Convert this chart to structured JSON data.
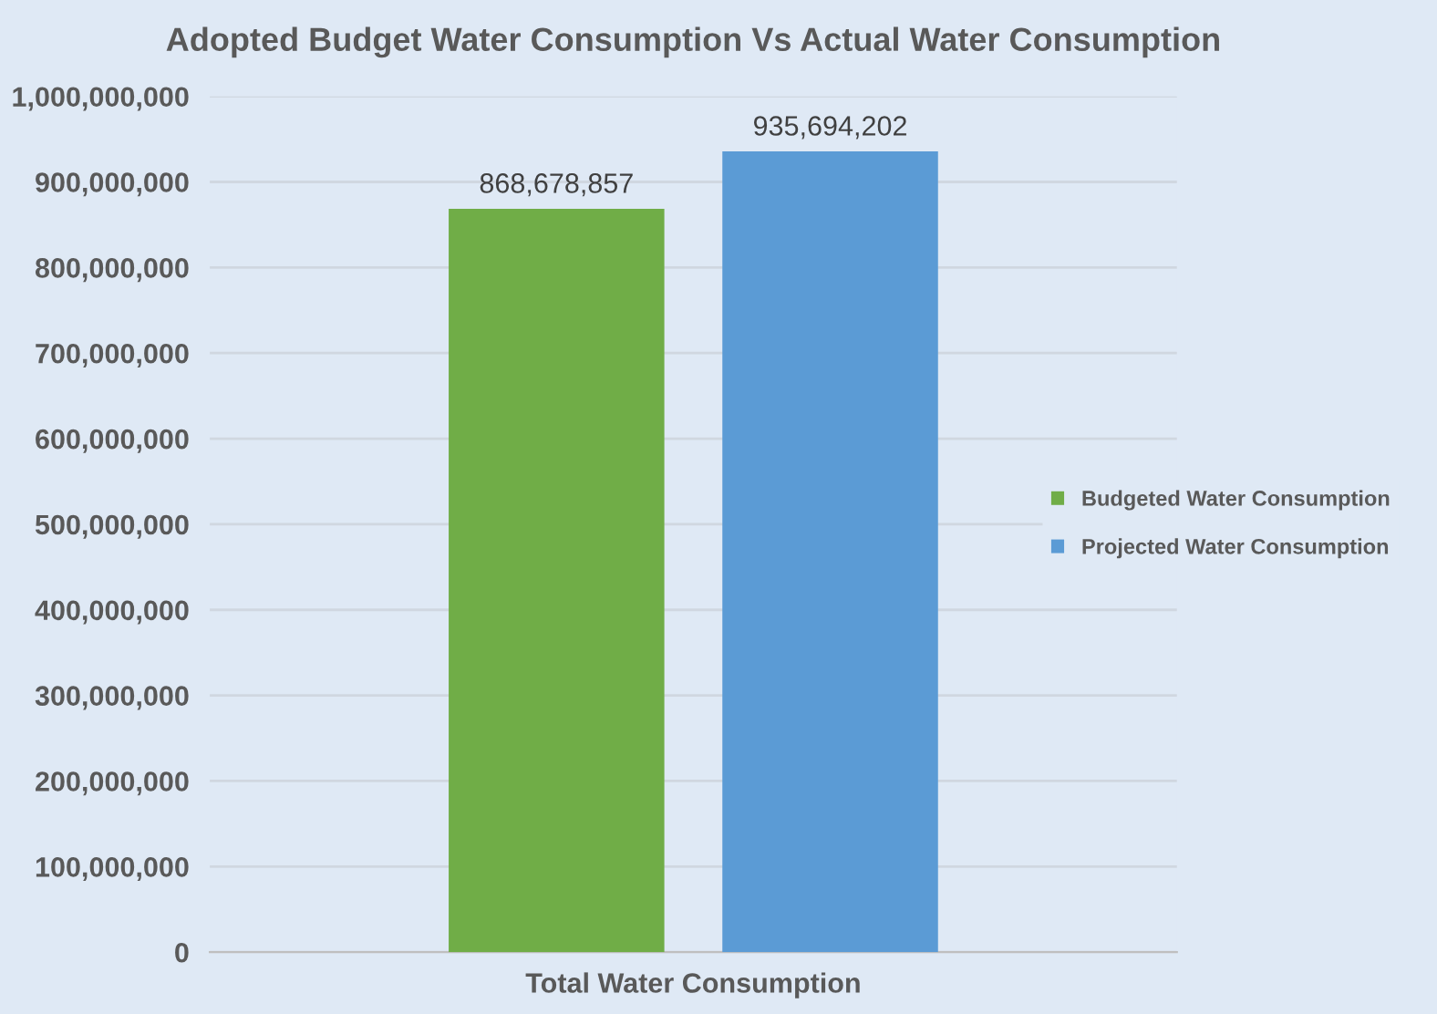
{
  "chart_data": {
    "type": "bar",
    "title": "Adopted Budget Water Consumption Vs Actual Water Consumption",
    "categories": [
      "Total Water Consumption"
    ],
    "series": [
      {
        "name": "Budgeted Water Consumption",
        "color": "#70ad47",
        "values": [
          868678857
        ],
        "value_labels": [
          "868,678,857"
        ]
      },
      {
        "name": "Projected Water Consumption",
        "color": "#5b9bd5",
        "values": [
          935694202
        ],
        "value_labels": [
          "935,694,202"
        ]
      }
    ],
    "ylim": [
      0,
      1000000000
    ],
    "yticks": [
      {
        "value": 0,
        "label": "0"
      },
      {
        "value": 100000000,
        "label": "100,000,000"
      },
      {
        "value": 200000000,
        "label": "200,000,000"
      },
      {
        "value": 300000000,
        "label": "300,000,000"
      },
      {
        "value": 400000000,
        "label": "400,000,000"
      },
      {
        "value": 500000000,
        "label": "500,000,000"
      },
      {
        "value": 600000000,
        "label": "600,000,000"
      },
      {
        "value": 700000000,
        "label": "700,000,000"
      },
      {
        "value": 800000000,
        "label": "800,000,000"
      },
      {
        "value": 900000000,
        "label": "900,000,000"
      },
      {
        "value": 1000000000,
        "label": "1,000,000,000"
      }
    ],
    "grid": "y",
    "legend": "right"
  }
}
